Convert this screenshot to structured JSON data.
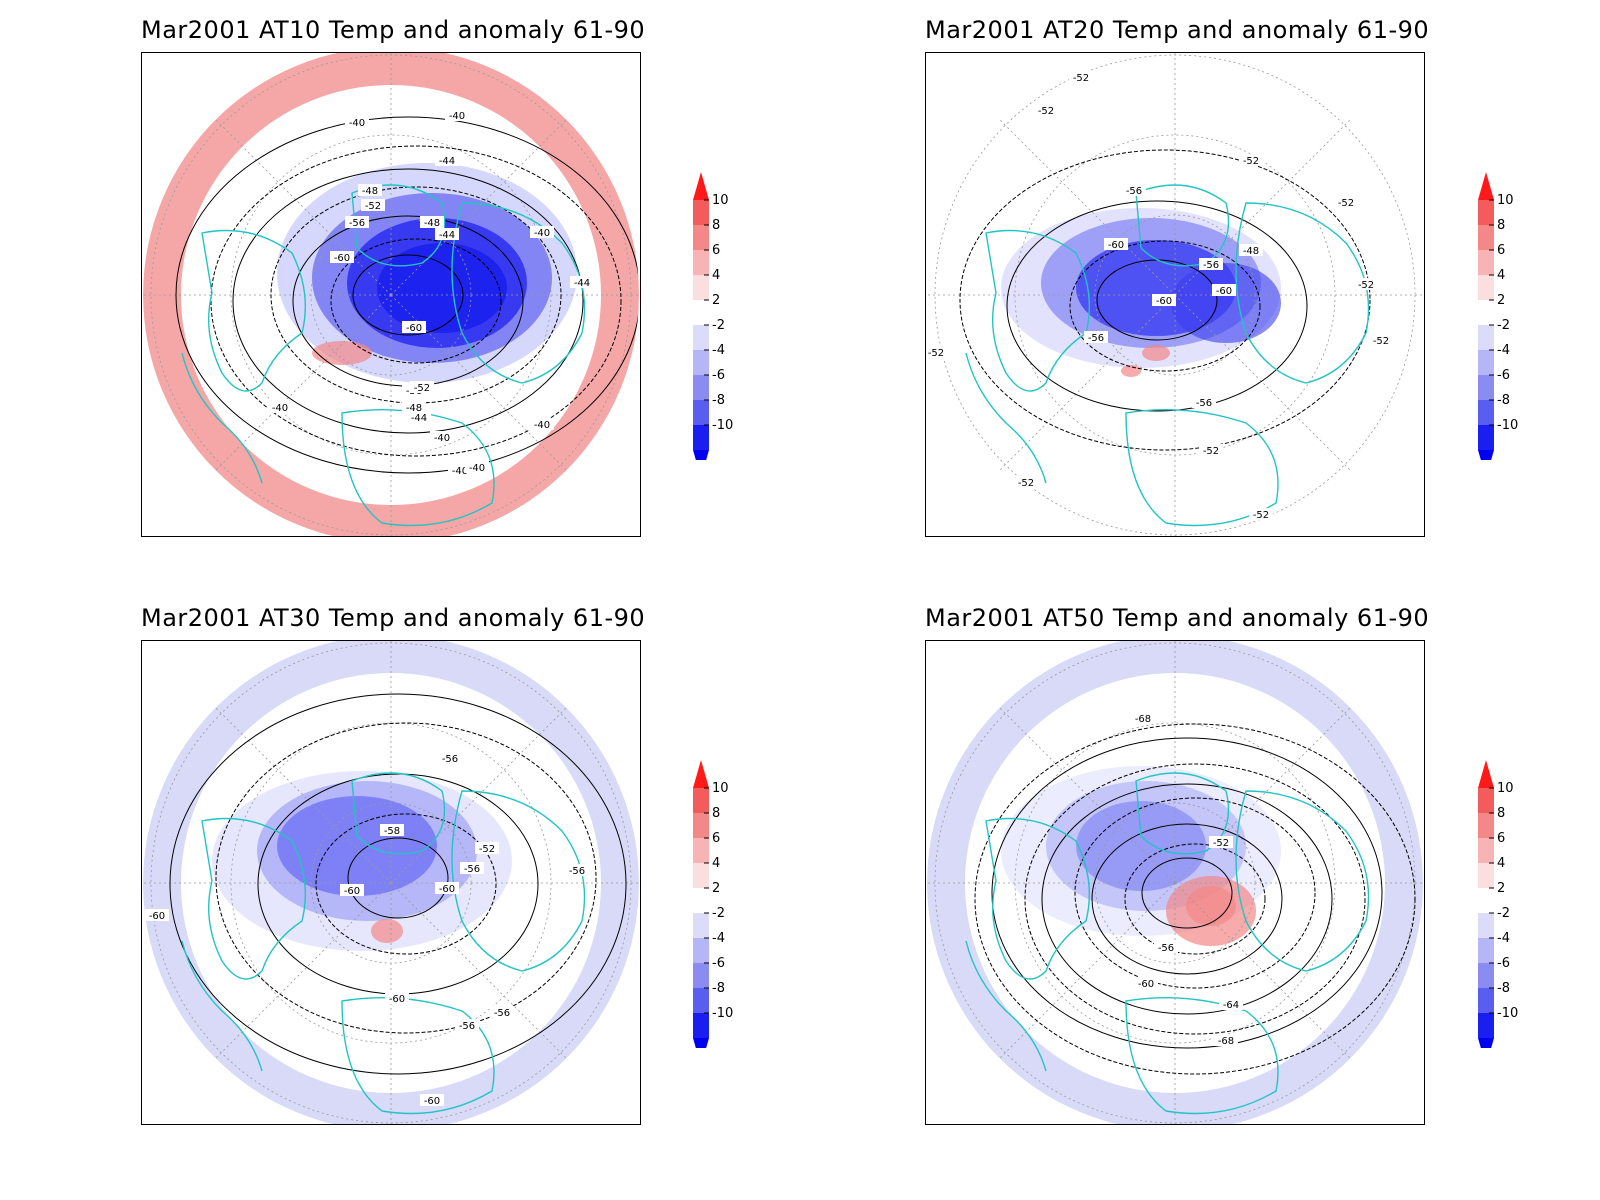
{
  "panels": [
    {
      "title": "Mar2001 AT10 Temp and anomaly 61-90",
      "ring_fill": "#f5a7a7",
      "core_fill": "#1e22ee",
      "contour_labels": [
        "-40",
        "-40",
        "-44",
        "-48",
        "-52",
        "-56",
        "-60",
        "-60",
        "-48",
        "-44",
        "-40",
        "-56",
        "-52",
        "-48",
        "-44",
        "-40",
        "-40",
        "-40",
        "-40",
        "-40",
        "-44"
      ]
    },
    {
      "title": "Mar2001 AT20 Temp and anomaly 61-90",
      "ring_fill": "#ffffff",
      "core_fill": "#3a3ef0",
      "contour_labels": [
        "-52",
        "-52",
        "-52",
        "-56",
        "-60",
        "-56",
        "-60",
        "-60",
        "-48",
        "-52",
        "-52",
        "-52",
        "-56",
        "-56",
        "-52",
        "-52",
        "-52",
        "-52"
      ]
    },
    {
      "title": "Mar2001 AT30 Temp and anomaly 61-90",
      "ring_fill": "#d8daf8",
      "core_fill": "#5a5ef2",
      "contour_labels": [
        "-56",
        "-58",
        "-52",
        "-56",
        "-56",
        "-60",
        "-60",
        "-60",
        "-60",
        "-56",
        "-56",
        "-60"
      ]
    },
    {
      "title": "Mar2001 AT50 Temp and anomaly 61-90",
      "ring_fill": "#d8daf8",
      "core_fill": "#7a7ef2",
      "contour_labels": [
        "-68",
        "-52",
        "-56",
        "-60",
        "-64",
        "-68"
      ]
    }
  ],
  "colorbar": {
    "levels": [
      "10",
      "8",
      "6",
      "4",
      "2",
      "-2",
      "-4",
      "-6",
      "-8",
      "-10"
    ],
    "colors": [
      "#ff1a1a",
      "#f25c5c",
      "#f48888",
      "#f8b4b4",
      "#fbdede",
      "#ffffff",
      "#dcdcfa",
      "#b4b6f6",
      "#8a8cf2",
      "#5a5ef0",
      "#1a1ef0",
      "#0000f0"
    ]
  },
  "coastline_color": "#22c4c4"
}
